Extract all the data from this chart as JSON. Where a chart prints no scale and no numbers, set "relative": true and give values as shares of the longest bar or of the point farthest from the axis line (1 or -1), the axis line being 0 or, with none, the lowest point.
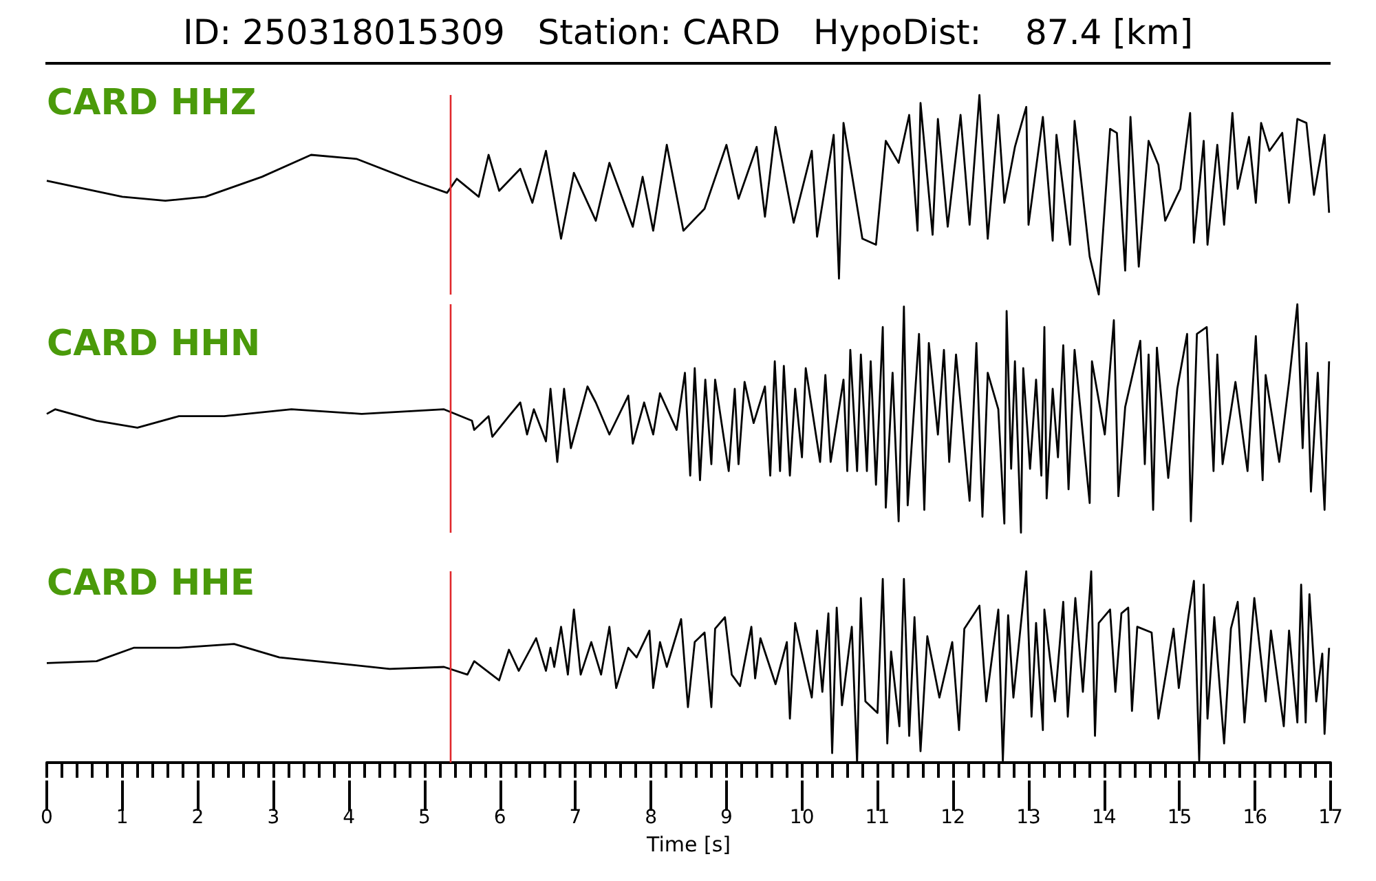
{
  "chart_data": [
    {
      "type": "line",
      "title": "ID: 250318015309   Station: CARD   HypoDist:    87.4 [km]",
      "relative": true,
      "tick_labels": false,
      "xlim": [
        0,
        17
      ],
      "ref_lines": [
        {
          "axis": "x",
          "value": 5.34,
          "color": "#e0282c"
        }
      ],
      "series": [
        {
          "name": "CARD HHZ",
          "color": "#000000",
          "x": [
            0,
            1.0,
            1.57,
            2.1,
            2.85,
            3.5,
            4.1,
            4.85,
            5.3,
            5.43,
            5.72,
            5.85,
            5.99,
            6.27,
            6.43,
            6.61,
            6.81,
            6.98,
            7.27,
            7.45,
            7.76,
            7.89,
            8.03,
            8.21,
            8.43,
            8.71,
            9.0,
            9.16,
            9.4,
            9.51,
            9.65,
            9.89,
            10.13,
            10.2,
            10.42,
            10.49,
            10.55,
            10.8,
            10.98,
            11.11,
            11.28,
            11.42,
            11.53,
            11.57,
            11.73,
            11.8,
            11.93,
            12.1,
            12.22,
            12.35,
            12.46,
            12.6,
            12.68,
            12.82,
            12.97,
            13.0,
            13.19,
            13.32,
            13.37,
            13.55,
            13.61,
            13.81,
            13.93,
            14.08,
            14.17,
            14.28,
            14.35,
            14.46,
            14.59,
            14.72,
            14.81,
            15.01,
            15.14,
            15.19,
            15.32,
            15.37,
            15.5,
            15.59,
            15.7,
            15.77,
            15.92,
            16.01,
            16.08,
            16.19,
            16.36,
            16.45,
            16.56,
            16.68,
            16.78,
            16.92,
            16.98
          ],
          "values": [
            0.57,
            0.49,
            0.47,
            0.49,
            0.59,
            0.7,
            0.68,
            0.57,
            0.51,
            0.58,
            0.49,
            0.7,
            0.52,
            0.63,
            0.46,
            0.72,
            0.28,
            0.61,
            0.37,
            0.66,
            0.34,
            0.59,
            0.32,
            0.75,
            0.32,
            0.43,
            0.75,
            0.48,
            0.74,
            0.39,
            0.84,
            0.36,
            0.72,
            0.29,
            0.8,
            0.08,
            0.86,
            0.28,
            0.25,
            0.77,
            0.66,
            0.9,
            0.32,
            0.96,
            0.3,
            0.88,
            0.34,
            0.9,
            0.35,
            1.0,
            0.28,
            0.9,
            0.46,
            0.74,
            0.94,
            0.35,
            0.89,
            0.27,
            0.8,
            0.25,
            0.87,
            0.19,
            0,
            0.83,
            0.81,
            0.12,
            0.89,
            0.14,
            0.77,
            0.65,
            0.37,
            0.53,
            0.91,
            0.26,
            0.77,
            0.25,
            0.75,
            0.35,
            0.91,
            0.53,
            0.79,
            0.46,
            0.86,
            0.72,
            0.81,
            0.46,
            0.88,
            0.86,
            0.5,
            0.8,
            0.41
          ]
        }
      ]
    },
    {
      "type": "line",
      "relative": true,
      "tick_labels": false,
      "xlim": [
        0,
        17
      ],
      "ref_lines": [
        {
          "axis": "x",
          "value": 5.34,
          "color": "#e0282c"
        }
      ],
      "series": [
        {
          "name": "CARD HHN",
          "color": "#000000",
          "x": [
            0,
            0.11,
            0.66,
            1.2,
            1.75,
            2.35,
            3.24,
            4.17,
            5.26,
            5.63,
            5.66,
            5.85,
            5.9,
            6.12,
            6.27,
            6.36,
            6.45,
            6.61,
            6.67,
            6.76,
            6.85,
            6.94,
            7.16,
            7.27,
            7.45,
            7.7,
            7.76,
            7.91,
            8.03,
            8.12,
            8.34,
            8.45,
            8.52,
            8.58,
            8.65,
            8.72,
            8.8,
            8.85,
            9.03,
            9.11,
            9.16,
            9.24,
            9.36,
            9.51,
            9.58,
            9.64,
            9.71,
            9.76,
            9.84,
            9.91,
            10.0,
            10.05,
            10.24,
            10.31,
            10.38,
            10.55,
            10.6,
            10.64,
            10.73,
            10.78,
            10.86,
            10.91,
            10.98,
            11.07,
            11.11,
            11.2,
            11.28,
            11.35,
            11.4,
            11.55,
            11.62,
            11.68,
            11.8,
            11.88,
            11.95,
            12.04,
            12.22,
            12.31,
            12.39,
            12.46,
            12.6,
            12.68,
            12.71,
            12.77,
            12.82,
            12.9,
            12.93,
            13.02,
            13.1,
            13.17,
            13.21,
            13.24,
            13.32,
            13.39,
            13.46,
            13.53,
            13.61,
            13.72,
            13.81,
            13.84,
            14.01,
            14.13,
            14.19,
            14.28,
            14.48,
            14.54,
            14.59,
            14.65,
            14.7,
            14.85,
            14.97,
            15.1,
            15.15,
            15.23,
            15.36,
            15.45,
            15.5,
            15.57,
            15.74,
            15.9,
            16.01,
            16.1,
            16.14,
            16.32,
            16.45,
            16.56,
            16.63,
            16.68,
            16.74,
            16.83,
            16.92,
            16.98
          ],
          "values": [
            0.52,
            0.54,
            0.49,
            0.46,
            0.51,
            0.51,
            0.54,
            0.52,
            0.54,
            0.49,
            0.45,
            0.51,
            0.42,
            0.51,
            0.57,
            0.43,
            0.54,
            0.4,
            0.63,
            0.31,
            0.63,
            0.37,
            0.64,
            0.57,
            0.43,
            0.6,
            0.39,
            0.57,
            0.43,
            0.61,
            0.45,
            0.7,
            0.25,
            0.72,
            0.23,
            0.67,
            0.3,
            0.67,
            0.27,
            0.63,
            0.3,
            0.66,
            0.48,
            0.64,
            0.25,
            0.75,
            0.27,
            0.73,
            0.25,
            0.63,
            0.33,
            0.72,
            0.31,
            0.69,
            0.31,
            0.67,
            0.27,
            0.8,
            0.27,
            0.78,
            0.27,
            0.75,
            0.21,
            0.9,
            0.11,
            0.7,
            0.05,
            0.99,
            0.12,
            0.87,
            0.1,
            0.83,
            0.43,
            0.8,
            0.31,
            0.78,
            0.14,
            0.83,
            0.07,
            0.7,
            0.54,
            0.04,
            0.97,
            0.28,
            0.75,
            0,
            0.72,
            0.28,
            0.67,
            0.25,
            0.9,
            0.15,
            0.63,
            0.33,
            0.82,
            0.19,
            0.8,
            0.43,
            0.13,
            0.75,
            0.43,
            0.93,
            0.16,
            0.55,
            0.84,
            0.3,
            0.78,
            0.1,
            0.81,
            0.24,
            0.63,
            0.87,
            0.05,
            0.87,
            0.9,
            0.27,
            0.78,
            0.3,
            0.66,
            0.27,
            0.86,
            0.23,
            0.69,
            0.31,
            0.66,
            1.0,
            0.37,
            0.83,
            0.18,
            0.7,
            0.1,
            0.75
          ]
        }
      ]
    },
    {
      "type": "line",
      "relative": true,
      "xlim": [
        0,
        17
      ],
      "xlabel": "Time [s]",
      "xticks": [
        0,
        {
          "value": 0.2,
          "label": null
        },
        {
          "value": 0.4,
          "label": null
        },
        {
          "value": 0.6,
          "label": null
        },
        {
          "value": 0.8,
          "label": null
        },
        1,
        {
          "value": 1.2,
          "label": null
        },
        {
          "value": 1.4,
          "label": null
        },
        {
          "value": 1.6,
          "label": null
        },
        {
          "value": 1.8,
          "label": null
        },
        2,
        {
          "value": 2.2,
          "label": null
        },
        {
          "value": 2.4,
          "label": null
        },
        {
          "value": 2.6,
          "label": null
        },
        {
          "value": 2.8,
          "label": null
        },
        3,
        {
          "value": 3.2,
          "label": null
        },
        {
          "value": 3.4,
          "label": null
        },
        {
          "value": 3.6,
          "label": null
        },
        {
          "value": 3.8,
          "label": null
        },
        4,
        {
          "value": 4.2,
          "label": null
        },
        {
          "value": 4.4,
          "label": null
        },
        {
          "value": 4.6,
          "label": null
        },
        {
          "value": 4.8,
          "label": null
        },
        5,
        {
          "value": 5.2,
          "label": null
        },
        {
          "value": 5.4,
          "label": null
        },
        {
          "value": 5.6,
          "label": null
        },
        {
          "value": 5.8,
          "label": null
        },
        6,
        {
          "value": 6.2,
          "label": null
        },
        {
          "value": 6.4,
          "label": null
        },
        {
          "value": 6.6,
          "label": null
        },
        {
          "value": 6.8,
          "label": null
        },
        7,
        {
          "value": 7.2,
          "label": null
        },
        {
          "value": 7.4,
          "label": null
        },
        {
          "value": 7.6,
          "label": null
        },
        {
          "value": 7.8,
          "label": null
        },
        8,
        {
          "value": 8.2,
          "label": null
        },
        {
          "value": 8.4,
          "label": null
        },
        {
          "value": 8.6,
          "label": null
        },
        {
          "value": 8.8,
          "label": null
        },
        9,
        {
          "value": 9.2,
          "label": null
        },
        {
          "value": 9.4,
          "label": null
        },
        {
          "value": 9.6,
          "label": null
        },
        {
          "value": 9.8,
          "label": null
        },
        10,
        {
          "value": 10.2,
          "label": null
        },
        {
          "value": 10.4,
          "label": null
        },
        {
          "value": 10.6,
          "label": null
        },
        {
          "value": 10.8,
          "label": null
        },
        11,
        {
          "value": 11.2,
          "label": null
        },
        {
          "value": 11.4,
          "label": null
        },
        {
          "value": 11.6,
          "label": null
        },
        {
          "value": 11.8,
          "label": null
        },
        12,
        {
          "value": 12.2,
          "label": null
        },
        {
          "value": 12.4,
          "label": null
        },
        {
          "value": 12.6,
          "label": null
        },
        {
          "value": 12.8,
          "label": null
        },
        13,
        {
          "value": 13.2,
          "label": null
        },
        {
          "value": 13.4,
          "label": null
        },
        {
          "value": 13.6,
          "label": null
        },
        {
          "value": 13.8,
          "label": null
        },
        14,
        {
          "value": 14.2,
          "label": null
        },
        {
          "value": 14.4,
          "label": null
        },
        {
          "value": 14.6,
          "label": null
        },
        {
          "value": 14.8,
          "label": null
        },
        15,
        {
          "value": 15.2,
          "label": null
        },
        {
          "value": 15.4,
          "label": null
        },
        {
          "value": 15.6,
          "label": null
        },
        {
          "value": 15.8,
          "label": null
        },
        16,
        {
          "value": 16.2,
          "label": null
        },
        {
          "value": 16.4,
          "label": null
        },
        {
          "value": 16.6,
          "label": null
        },
        {
          "value": 16.8,
          "label": null
        },
        17
      ],
      "ref_lines": [
        {
          "axis": "x",
          "value": 5.34,
          "color": "#e0282c"
        }
      ],
      "series": [
        {
          "name": "CARD HHE",
          "color": "#000000",
          "x": [
            0,
            0.66,
            1.15,
            1.75,
            2.48,
            3.08,
            3.81,
            4.54,
            5.26,
            5.57,
            5.66,
            5.99,
            6.12,
            6.25,
            6.48,
            6.61,
            6.67,
            6.72,
            6.81,
            6.9,
            6.98,
            7.07,
            7.21,
            7.34,
            7.45,
            7.54,
            7.7,
            7.81,
            7.98,
            8.03,
            8.12,
            8.21,
            8.4,
            8.49,
            8.58,
            8.71,
            8.8,
            8.85,
            8.98,
            9.07,
            9.18,
            9.33,
            9.38,
            9.45,
            9.65,
            9.8,
            9.84,
            9.91,
            10.13,
            10.2,
            10.27,
            10.35,
            10.4,
            10.46,
            10.53,
            10.66,
            10.73,
            10.78,
            10.84,
            11.0,
            11.07,
            11.13,
            11.18,
            11.29,
            11.35,
            11.42,
            11.49,
            11.57,
            11.66,
            11.82,
            11.99,
            12.08,
            12.15,
            12.35,
            12.44,
            12.6,
            12.66,
            12.73,
            12.8,
            12.97,
            13.04,
            13.1,
            13.19,
            13.21,
            13.35,
            13.46,
            13.52,
            13.62,
            13.72,
            13.83,
            13.88,
            13.93,
            14.08,
            14.15,
            14.23,
            14.32,
            14.37,
            14.44,
            14.63,
            14.72,
            14.92,
            14.99,
            15.12,
            15.19,
            15.26,
            15.32,
            15.37,
            15.46,
            15.59,
            15.68,
            15.77,
            15.86,
            15.99,
            16.14,
            16.21,
            16.38,
            16.45,
            16.56,
            16.61,
            16.67,
            16.72,
            16.81,
            16.89,
            16.92,
            16.98
          ],
          "values": [
            0.52,
            0.53,
            0.6,
            0.6,
            0.62,
            0.55,
            0.52,
            0.49,
            0.5,
            0.46,
            0.53,
            0.43,
            0.59,
            0.48,
            0.65,
            0.48,
            0.6,
            0.5,
            0.71,
            0.46,
            0.8,
            0.46,
            0.63,
            0.46,
            0.71,
            0.39,
            0.6,
            0.55,
            0.69,
            0.39,
            0.63,
            0.5,
            0.75,
            0.29,
            0.63,
            0.68,
            0.29,
            0.7,
            0.76,
            0.46,
            0.4,
            0.71,
            0.44,
            0.65,
            0.41,
            0.63,
            0.23,
            0.73,
            0.34,
            0.69,
            0.37,
            0.78,
            0.05,
            0.81,
            0.3,
            0.71,
            0,
            0.86,
            0.32,
            0.26,
            0.96,
            0.1,
            0.58,
            0.19,
            0.96,
            0.14,
            0.76,
            0.06,
            0.66,
            0.34,
            0.63,
            0.17,
            0.7,
            0.82,
            0.32,
            0.8,
            0.01,
            0.77,
            0.34,
            1.0,
            0.24,
            0.73,
            0.17,
            0.8,
            0.32,
            0.84,
            0.24,
            0.86,
            0.37,
            1.0,
            0.14,
            0.73,
            0.8,
            0.37,
            0.78,
            0.81,
            0.27,
            0.71,
            0.68,
            0.23,
            0.7,
            0.39,
            0.77,
            0.95,
            0.01,
            0.93,
            0.23,
            0.76,
            0.1,
            0.7,
            0.84,
            0.21,
            0.86,
            0.32,
            0.69,
            0.19,
            0.69,
            0.21,
            0.93,
            0.21,
            0.88,
            0.32,
            0.57,
            0.15,
            0.6
          ]
        }
      ]
    }
  ]
}
